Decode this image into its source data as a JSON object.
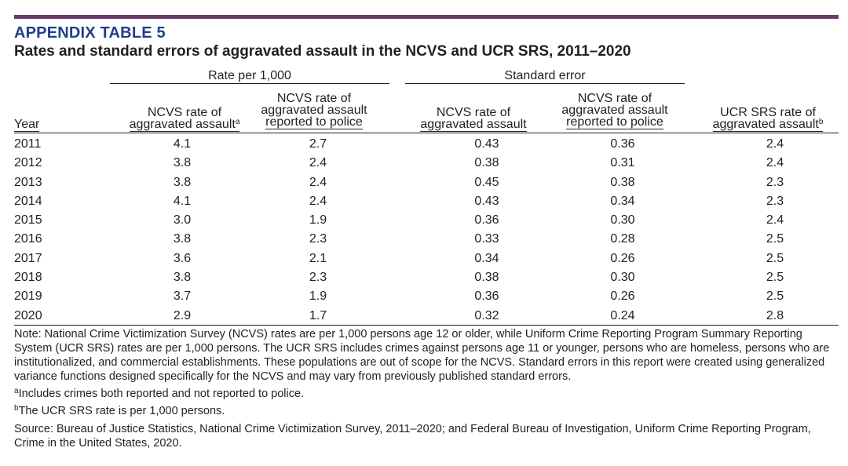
{
  "header": {
    "label": "APPENDIX TABLE 5",
    "title": "Rates and standard errors of aggravated assault in the NCVS and UCR SRS, 2011–2020"
  },
  "groups": {
    "rate": "Rate per 1,000",
    "se": "Standard error"
  },
  "columns": {
    "year": "Year",
    "c1_line1": "NCVS rate of",
    "c1_line2": "aggravated assault",
    "c1_sup": "a",
    "c2_line1": "NCVS rate of",
    "c2_line2": "aggravated assault",
    "c2_line3": "reported to police",
    "c3_line1": "NCVS rate of",
    "c3_line2": "aggravated assault",
    "c4_line1": "NCVS rate of",
    "c4_line2": "aggravated assault",
    "c4_line3": "reported to police",
    "c5_line1": "UCR SRS rate of",
    "c5_line2": "aggravated assault",
    "c5_sup": "b"
  },
  "rows": [
    {
      "year": "2011",
      "ncvs_rate": "4.1",
      "ncvs_reported": "2.7",
      "se_rate": "0.43",
      "se_reported": "0.36",
      "ucr_rate": "2.4"
    },
    {
      "year": "2012",
      "ncvs_rate": "3.8",
      "ncvs_reported": "2.4",
      "se_rate": "0.38",
      "se_reported": "0.31",
      "ucr_rate": "2.4"
    },
    {
      "year": "2013",
      "ncvs_rate": "3.8",
      "ncvs_reported": "2.4",
      "se_rate": "0.45",
      "se_reported": "0.38",
      "ucr_rate": "2.3"
    },
    {
      "year": "2014",
      "ncvs_rate": "4.1",
      "ncvs_reported": "2.4",
      "se_rate": "0.43",
      "se_reported": "0.34",
      "ucr_rate": "2.3"
    },
    {
      "year": "2015",
      "ncvs_rate": "3.0",
      "ncvs_reported": "1.9",
      "se_rate": "0.36",
      "se_reported": "0.30",
      "ucr_rate": "2.4"
    },
    {
      "year": "2016",
      "ncvs_rate": "3.8",
      "ncvs_reported": "2.3",
      "se_rate": "0.33",
      "se_reported": "0.28",
      "ucr_rate": "2.5"
    },
    {
      "year": "2017",
      "ncvs_rate": "3.6",
      "ncvs_reported": "2.1",
      "se_rate": "0.34",
      "se_reported": "0.26",
      "ucr_rate": "2.5"
    },
    {
      "year": "2018",
      "ncvs_rate": "3.8",
      "ncvs_reported": "2.3",
      "se_rate": "0.38",
      "se_reported": "0.30",
      "ucr_rate": "2.5"
    },
    {
      "year": "2019",
      "ncvs_rate": "3.7",
      "ncvs_reported": "1.9",
      "se_rate": "0.36",
      "se_reported": "0.26",
      "ucr_rate": "2.5"
    },
    {
      "year": "2020",
      "ncvs_rate": "2.9",
      "ncvs_reported": "1.7",
      "se_rate": "0.32",
      "se_reported": "0.24",
      "ucr_rate": "2.8"
    }
  ],
  "notes": {
    "note": "Note: National Crime Victimization Survey (NCVS) rates are per 1,000 persons age 12 or older, while Uniform Crime Reporting Program Summary Reporting System (UCR SRS) rates are per 1,000 persons. The UCR SRS includes crimes against persons age 11 or younger, persons who are homeless, persons who are institutionalized, and commercial establishments. These populations are out of scope for the NCVS. Standard errors in this report were created using generalized variance functions designed specifically for the NCVS and may vary from previously published standard errors.",
    "fn_a_marker": "a",
    "fn_a": "Includes crimes both reported and not reported to police.",
    "fn_b_marker": "b",
    "fn_b": "The UCR SRS rate is per 1,000 persons.",
    "source": "Source: Bureau of Justice Statistics, National Crime Victimization Survey, 2011–2020; and Federal Bureau of Investigation, Uniform Crime Reporting Program, Crime in the United States, 2020."
  },
  "colors": {
    "top_bar": "#6b3a6a",
    "label": "#1f3f8a",
    "text": "#231f20"
  }
}
